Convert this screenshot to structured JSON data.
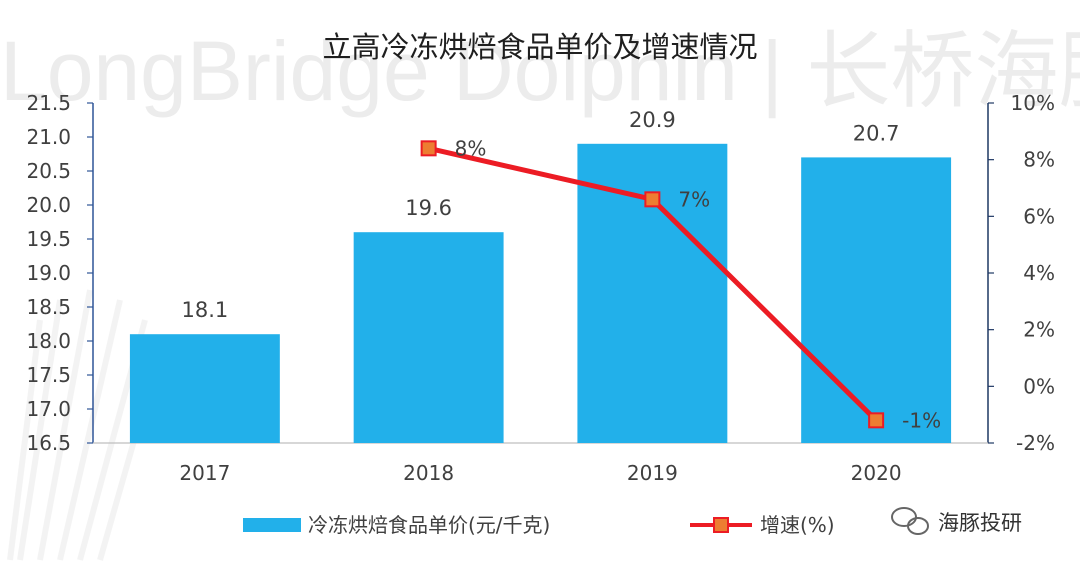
{
  "watermark": "LongBridge Dolphin | 长桥海豚投研",
  "chart_data": {
    "type": "bar",
    "title": "立高冷冻烘焙食品单价及增速情况",
    "categories": [
      "2017",
      "2018",
      "2019",
      "2020"
    ],
    "series": [
      {
        "name": "冷冻烘焙食品单价(元/千克)",
        "type": "bar",
        "axis": "left",
        "values": [
          18.1,
          19.6,
          20.9,
          20.7
        ],
        "value_labels": [
          "18.1",
          "19.6",
          "20.9",
          "20.7"
        ],
        "color": "#22b0ea"
      },
      {
        "name": "增速(%)",
        "type": "line",
        "axis": "right",
        "values": [
          null,
          8.4,
          6.6,
          -1.2
        ],
        "value_labels": [
          "",
          "8%",
          "7%",
          "-1%"
        ],
        "color": "#ec1c24",
        "marker_color": "#ed7d31"
      }
    ],
    "y_left": {
      "min": 16.5,
      "max": 21.5,
      "ticks": [
        16.5,
        17.0,
        17.5,
        18.0,
        18.5,
        19.0,
        19.5,
        20.0,
        20.5,
        21.0,
        21.5
      ],
      "tick_labels": [
        "16.5",
        "17.0",
        "17.5",
        "18.0",
        "18.5",
        "19.0",
        "19.5",
        "20.0",
        "20.5",
        "21.0",
        "21.5"
      ]
    },
    "y_right": {
      "min": -2,
      "max": 10,
      "ticks": [
        -2,
        0,
        2,
        4,
        6,
        8,
        10
      ],
      "tick_labels": [
        "-2%",
        "0%",
        "2%",
        "4%",
        "6%",
        "8%",
        "10%"
      ]
    },
    "legend": [
      "冷冻烘焙食品单价(元/千克)",
      "增速(%)"
    ],
    "legend_position": "bottom"
  },
  "brand": {
    "wechat_icon": "wechat-icon",
    "name": "海豚投研"
  }
}
